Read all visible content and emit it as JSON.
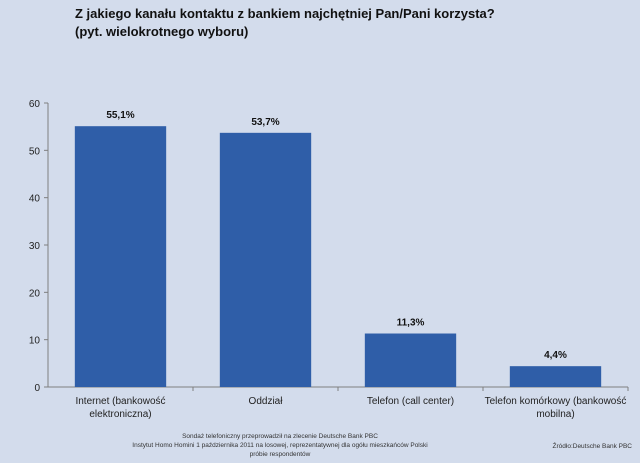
{
  "chart_data": {
    "type": "bar",
    "title_line1": "Z jakiego kanału kontaktu z bankiem najchętniej Pan/Pani korzysta?",
    "title_line2": "(pyt. wielokrotnego wyboru)",
    "categories": [
      [
        "Internet (bankowość",
        "elektroniczna)"
      ],
      [
        "Oddział"
      ],
      [
        "Telefon (call center)"
      ],
      [
        "Telefon komórkowy (bankowość",
        "mobilna)"
      ]
    ],
    "values": [
      55.1,
      53.7,
      11.3,
      4.4
    ],
    "data_labels": [
      "55,1%",
      "53,7%",
      "11,3%",
      "4,4%"
    ],
    "ylim": [
      0,
      60
    ],
    "yticks": [
      0,
      10,
      20,
      30,
      40,
      50,
      60
    ],
    "bar_color": "#2f5ea8",
    "grid": false
  },
  "footer": {
    "note_line1": "Sondaż telefoniczny przeprowadził na zlecenie Deutsche Bank PBC",
    "note_line2": "Instytut Homo Homini 1 października  2011 na losowej, reprezentatywnej dla ogółu mieszkańców Polski",
    "note_line3": "próbie respondentów",
    "source": "Źródło:Deutsche Bank PBC"
  }
}
